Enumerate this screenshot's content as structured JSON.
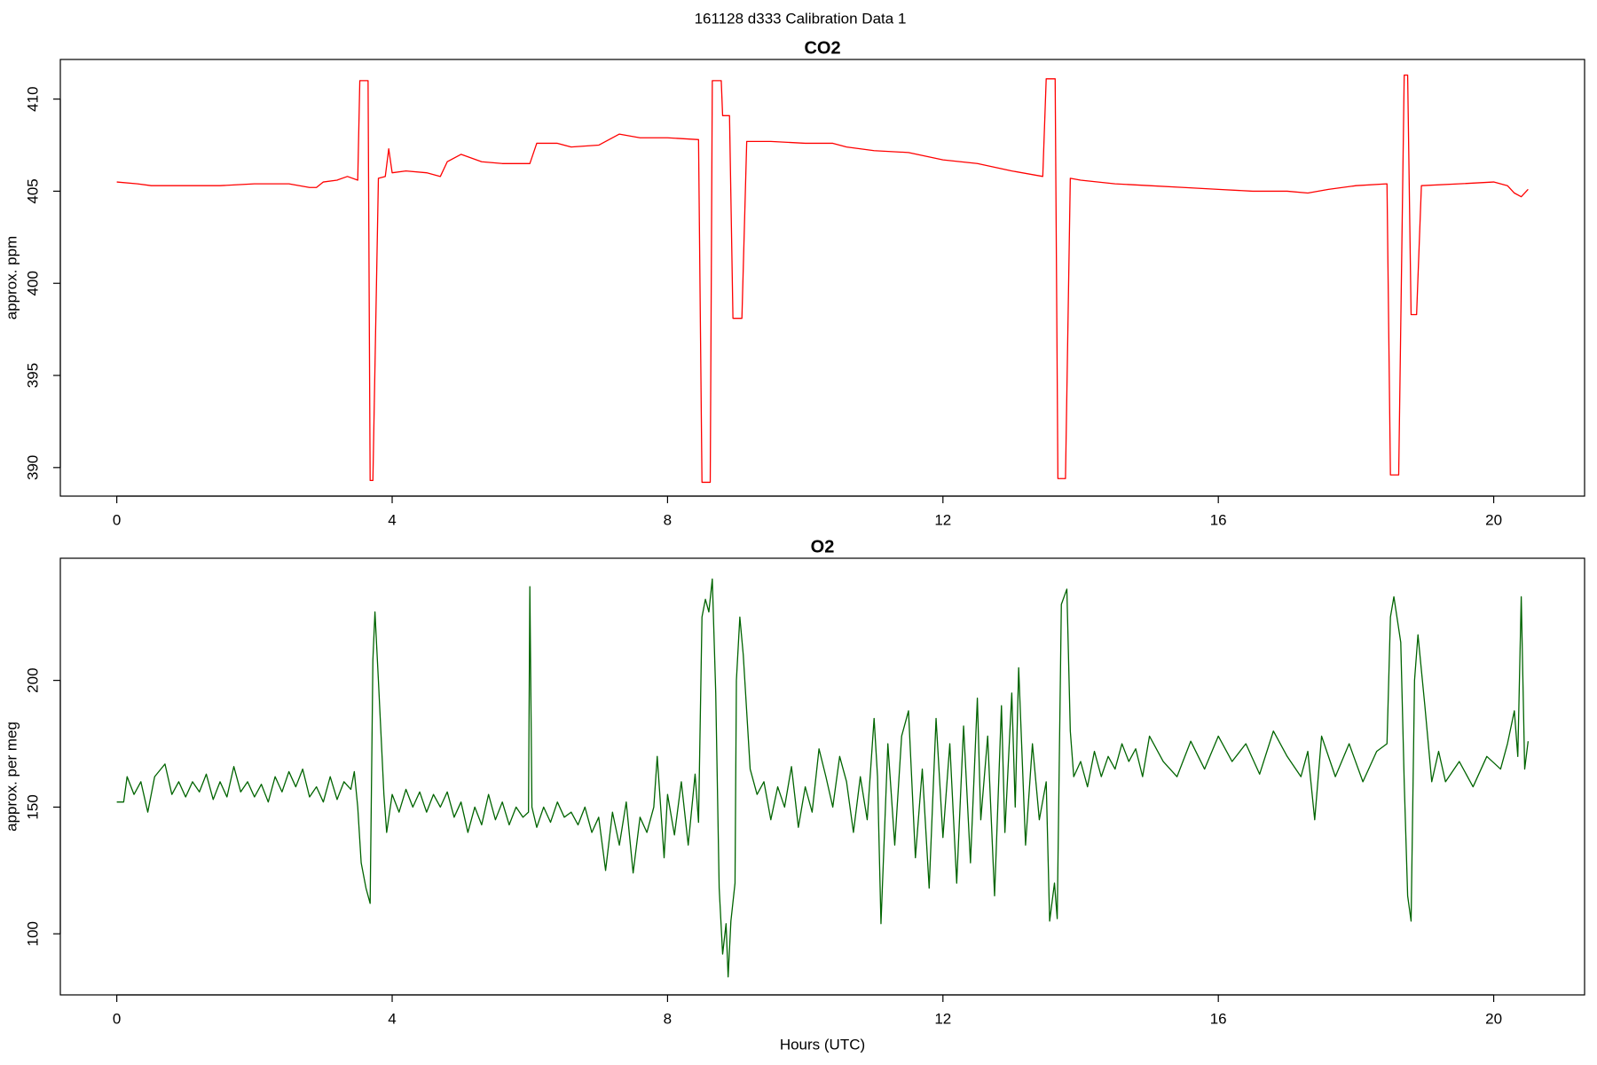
{
  "title": "161128   d333   Calibration Data 1",
  "chart_data": [
    {
      "type": "line",
      "title": "CO2",
      "ylabel": "approx. ppm",
      "color": "#ff0000",
      "xlim": [
        -0.82,
        21.32
      ],
      "ylim": [
        388.45,
        412.15
      ],
      "xticks": [
        0,
        4,
        8,
        12,
        16,
        20
      ],
      "yticks": [
        390,
        395,
        400,
        405,
        410
      ],
      "x": [
        0,
        0.3,
        0.5,
        1,
        1.5,
        2,
        2.5,
        2.8,
        2.9,
        3.0,
        3.2,
        3.35,
        3.5,
        3.53,
        3.65,
        3.68,
        3.72,
        3.8,
        3.9,
        3.95,
        4.0,
        4.2,
        4.5,
        4.7,
        4.8,
        5.0,
        5.3,
        5.6,
        6.0,
        6.1,
        6.4,
        6.6,
        7.0,
        7.3,
        7.6,
        8.0,
        8.45,
        8.5,
        8.62,
        8.65,
        8.78,
        8.8,
        8.9,
        8.95,
        9.08,
        9.15,
        9.5,
        10.0,
        10.4,
        10.6,
        11.0,
        11.5,
        12.0,
        12.5,
        13.0,
        13.45,
        13.5,
        13.63,
        13.67,
        13.78,
        13.85,
        14.0,
        14.5,
        15.0,
        15.5,
        16.0,
        16.5,
        17.0,
        17.3,
        17.6,
        18.0,
        18.45,
        18.5,
        18.62,
        18.7,
        18.75,
        18.8,
        18.88,
        18.95,
        19.5,
        20.0,
        20.2,
        20.3,
        20.4,
        20.5
      ],
      "values": [
        405.5,
        405.4,
        405.3,
        405.3,
        405.3,
        405.4,
        405.4,
        405.2,
        405.2,
        405.5,
        405.6,
        405.8,
        405.6,
        411,
        411,
        389.3,
        389.3,
        405.7,
        405.8,
        407.3,
        406.0,
        406.1,
        406.0,
        405.8,
        406.6,
        407.0,
        406.6,
        406.5,
        406.5,
        407.6,
        407.6,
        407.4,
        407.5,
        408.1,
        407.9,
        407.9,
        407.8,
        389.2,
        389.2,
        411,
        411,
        409.1,
        409.1,
        398.1,
        398.1,
        407.7,
        407.7,
        407.6,
        407.6,
        407.4,
        407.2,
        407.1,
        406.7,
        406.5,
        406.1,
        405.8,
        411.1,
        411.1,
        389.4,
        389.4,
        405.7,
        405.6,
        405.4,
        405.3,
        405.2,
        405.1,
        405.0,
        405.0,
        404.9,
        405.1,
        405.3,
        405.4,
        389.6,
        389.6,
        411.3,
        411.3,
        398.3,
        398.3,
        405.3,
        405.4,
        405.5,
        405.3,
        404.9,
        404.7,
        405.1
      ]
    },
    {
      "type": "line",
      "title": "O2",
      "ylabel": "approx. per meg",
      "xlabel": "Hours (UTC)",
      "color": "#006400",
      "xlim": [
        -0.82,
        21.32
      ],
      "ylim": [
        75.9,
        248.2
      ],
      "xticks": [
        0,
        4,
        8,
        12,
        16,
        20
      ],
      "yticks": [
        100,
        150,
        200
      ],
      "x": [
        0,
        0.1,
        0.15,
        0.25,
        0.35,
        0.45,
        0.55,
        0.7,
        0.8,
        0.9,
        1.0,
        1.1,
        1.2,
        1.3,
        1.4,
        1.5,
        1.6,
        1.7,
        1.8,
        1.9,
        2.0,
        2.1,
        2.2,
        2.3,
        2.4,
        2.5,
        2.6,
        2.7,
        2.8,
        2.9,
        3.0,
        3.1,
        3.2,
        3.3,
        3.4,
        3.45,
        3.5,
        3.55,
        3.62,
        3.68,
        3.72,
        3.75,
        3.8,
        3.88,
        3.92,
        4.0,
        4.1,
        4.2,
        4.3,
        4.4,
        4.5,
        4.6,
        4.7,
        4.8,
        4.9,
        5.0,
        5.1,
        5.2,
        5.3,
        5.4,
        5.5,
        5.6,
        5.7,
        5.8,
        5.9,
        5.98,
        6.0,
        6.03,
        6.1,
        6.2,
        6.3,
        6.4,
        6.5,
        6.6,
        6.7,
        6.8,
        6.9,
        7.0,
        7.1,
        7.2,
        7.3,
        7.4,
        7.5,
        7.6,
        7.7,
        7.8,
        7.85,
        7.95,
        8.0,
        8.1,
        8.2,
        8.3,
        8.4,
        8.45,
        8.5,
        8.55,
        8.6,
        8.65,
        8.7,
        8.75,
        8.8,
        8.85,
        8.88,
        8.92,
        8.98,
        9.0,
        9.05,
        9.1,
        9.2,
        9.3,
        9.4,
        9.5,
        9.6,
        9.7,
        9.8,
        9.9,
        10.0,
        10.1,
        10.2,
        10.3,
        10.4,
        10.5,
        10.6,
        10.7,
        10.8,
        10.9,
        11.0,
        11.05,
        11.1,
        11.2,
        11.3,
        11.4,
        11.5,
        11.6,
        11.7,
        11.8,
        11.9,
        12.0,
        12.1,
        12.2,
        12.3,
        12.4,
        12.5,
        12.55,
        12.65,
        12.75,
        12.85,
        12.9,
        13.0,
        13.05,
        13.1,
        13.2,
        13.3,
        13.4,
        13.5,
        13.55,
        13.62,
        13.66,
        13.72,
        13.8,
        13.85,
        13.9,
        14.0,
        14.1,
        14.2,
        14.3,
        14.4,
        14.5,
        14.6,
        14.7,
        14.8,
        14.9,
        15.0,
        15.2,
        15.4,
        15.6,
        15.8,
        16.0,
        16.2,
        16.4,
        16.6,
        16.8,
        17.0,
        17.2,
        17.3,
        17.4,
        17.5,
        17.7,
        17.9,
        18.1,
        18.3,
        18.45,
        18.5,
        18.55,
        18.65,
        18.7,
        18.75,
        18.8,
        18.85,
        18.9,
        19.0,
        19.1,
        19.2,
        19.3,
        19.5,
        19.7,
        19.9,
        20.1,
        20.2,
        20.3,
        20.35,
        20.4,
        20.45,
        20.5
      ],
      "values": [
        152,
        152,
        162,
        155,
        160,
        148,
        162,
        167,
        155,
        160,
        154,
        160,
        156,
        163,
        153,
        160,
        154,
        166,
        156,
        160,
        154,
        159,
        152,
        162,
        156,
        164,
        158,
        165,
        154,
        158,
        152,
        162,
        153,
        160,
        157,
        164,
        150,
        128,
        118,
        112,
        208,
        227,
        200,
        155,
        140,
        155,
        148,
        157,
        150,
        156,
        148,
        155,
        150,
        156,
        146,
        152,
        140,
        150,
        143,
        155,
        145,
        152,
        143,
        150,
        146,
        148,
        237,
        150,
        142,
        150,
        144,
        152,
        146,
        148,
        143,
        150,
        140,
        146,
        125,
        148,
        135,
        152,
        124,
        146,
        140,
        150,
        170,
        130,
        155,
        139,
        160,
        135,
        163,
        144,
        225,
        232,
        227,
        240,
        195,
        118,
        92,
        104,
        83,
        105,
        120,
        200,
        225,
        210,
        165,
        155,
        160,
        145,
        158,
        150,
        166,
        142,
        158,
        148,
        173,
        162,
        150,
        170,
        160,
        140,
        162,
        145,
        185,
        162,
        104,
        175,
        135,
        178,
        188,
        130,
        165,
        118,
        185,
        138,
        175,
        120,
        182,
        128,
        193,
        145,
        178,
        115,
        190,
        140,
        195,
        150,
        205,
        135,
        175,
        145,
        160,
        105,
        120,
        106,
        230,
        236,
        180,
        162,
        168,
        158,
        172,
        162,
        170,
        165,
        175,
        168,
        173,
        162,
        178,
        168,
        162,
        176,
        165,
        178,
        168,
        175,
        163,
        180,
        170,
        162,
        172,
        145,
        178,
        162,
        175,
        160,
        172,
        175,
        225,
        233,
        215,
        160,
        115,
        105,
        200,
        218,
        190,
        160,
        172,
        160,
        168,
        158,
        170,
        165,
        175,
        188,
        170,
        233,
        165,
        176
      ]
    }
  ]
}
